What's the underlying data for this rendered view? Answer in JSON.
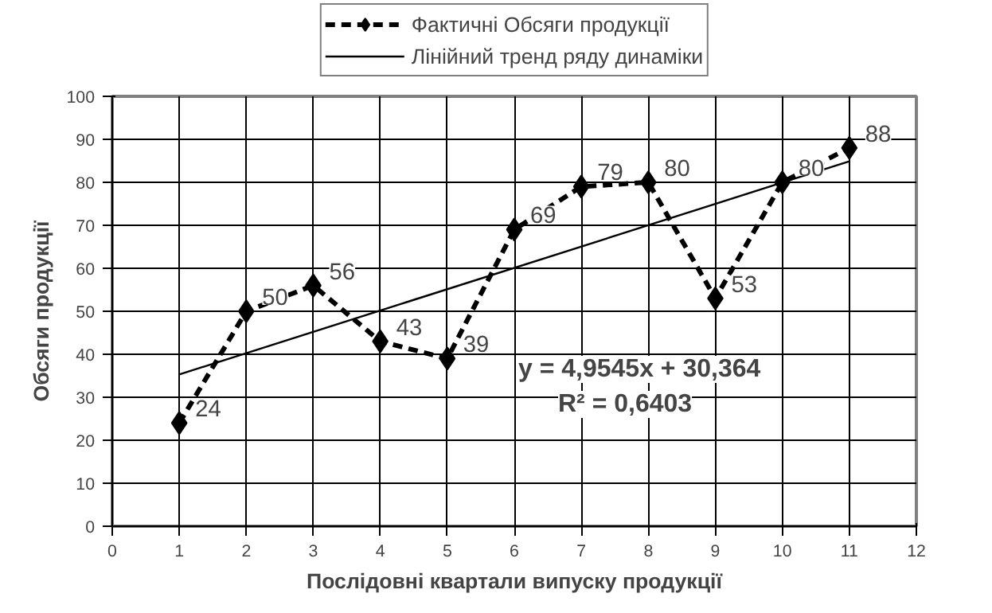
{
  "chart_data": {
    "type": "line",
    "xlabel": "Послідовні квартали випуску продукції",
    "ylabel": "Обсяги продукції",
    "x": [
      1,
      2,
      3,
      4,
      5,
      6,
      7,
      8,
      9,
      10,
      11
    ],
    "series": [
      {
        "name": "Фактичні Обсяги продукції",
        "color": "#000000",
        "values": [
          24,
          50,
          56,
          43,
          39,
          69,
          79,
          80,
          53,
          80,
          88
        ],
        "value_labels": [
          "24",
          "50",
          "56",
          "43",
          "39",
          "69",
          "79",
          "80",
          "53",
          "80",
          "88"
        ],
        "marker": "diamond",
        "line_style": "dashed"
      },
      {
        "name": "Лінійний тренд ряду динаміки",
        "color": "#000000",
        "type": "line",
        "x": [
          1,
          11
        ],
        "values": [
          35.3,
          84.9
        ],
        "marker": "none",
        "line_style": "solid"
      }
    ],
    "annotations": [
      "y = 4,9545x + 30,364",
      "R² = 0,6403"
    ],
    "xlim": [
      0,
      12
    ],
    "xticks": [
      0,
      1,
      2,
      3,
      4,
      5,
      6,
      7,
      8,
      9,
      10,
      11,
      12
    ],
    "ylim": [
      0,
      100
    ],
    "yticks": [
      0,
      10,
      20,
      30,
      40,
      50,
      60,
      70,
      80,
      90,
      100
    ],
    "grid": true,
    "legend": "top"
  }
}
